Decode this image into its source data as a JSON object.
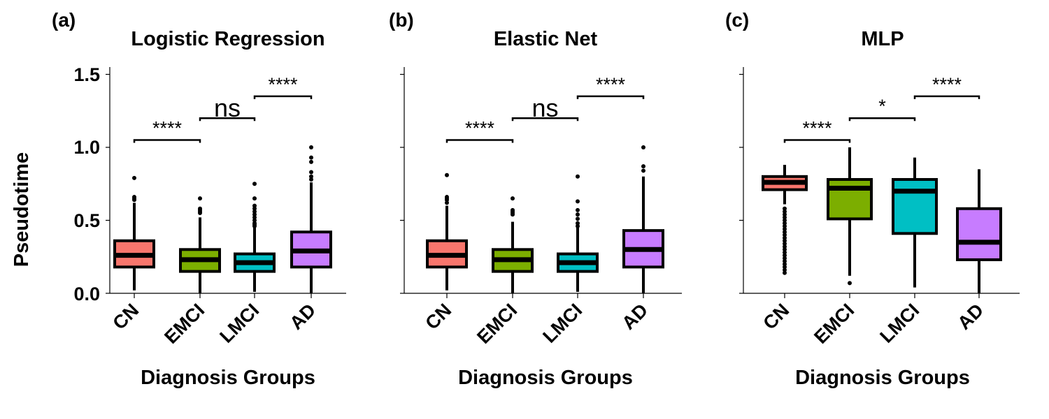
{
  "figure": {
    "ylabel": "Pseudotime",
    "xlabel": "Diagnosis Groups",
    "colors": {
      "CN": "#F8766D",
      "EMCI": "#7CAE00",
      "LMCI": "#00BFC4",
      "AD": "#C77CFF"
    }
  },
  "chart_data": [
    {
      "type": "box",
      "panel_label": "(a)",
      "title": "Logistic Regression",
      "categories": [
        "CN",
        "EMCI",
        "LMCI",
        "AD"
      ],
      "xlabel": "Diagnosis Groups",
      "ylabel": "Pseudotime",
      "ylim": [
        0,
        1.55
      ],
      "yticks": [
        "0.0",
        "0.5",
        "1.0",
        "1.5"
      ],
      "boxes": [
        {
          "group": "CN",
          "whisker_low": 0.02,
          "q1": 0.18,
          "median": 0.26,
          "q3": 0.36,
          "whisker_high": 0.62,
          "outliers": [
            0.64,
            0.65,
            0.66,
            0.79
          ]
        },
        {
          "group": "EMCI",
          "whisker_low": 0.0,
          "q1": 0.15,
          "median": 0.23,
          "q3": 0.3,
          "whisker_high": 0.52,
          "outliers": [
            0.55,
            0.56,
            0.57,
            0.58,
            0.65
          ]
        },
        {
          "group": "LMCI",
          "whisker_low": 0.01,
          "q1": 0.15,
          "median": 0.21,
          "q3": 0.27,
          "whisker_high": 0.45,
          "outliers": [
            0.46,
            0.47,
            0.48,
            0.5,
            0.52,
            0.54,
            0.56,
            0.58,
            0.6,
            0.65,
            0.75
          ]
        },
        {
          "group": "AD",
          "whisker_low": 0.0,
          "q1": 0.18,
          "median": 0.29,
          "q3": 0.42,
          "whisker_high": 0.76,
          "outliers": [
            0.78,
            0.8,
            0.83,
            0.9,
            0.93,
            1.0
          ]
        }
      ],
      "significance": [
        {
          "from": "CN",
          "to": "EMCI",
          "y": 1.05,
          "label": "****"
        },
        {
          "from": "EMCI",
          "to": "LMCI",
          "y": 1.2,
          "label": "ns"
        },
        {
          "from": "LMCI",
          "to": "AD",
          "y": 1.35,
          "label": "****"
        }
      ]
    },
    {
      "type": "box",
      "panel_label": "(b)",
      "title": "Elastic Net",
      "categories": [
        "CN",
        "EMCI",
        "LMCI",
        "AD"
      ],
      "xlabel": "Diagnosis Groups",
      "ylim": [
        0,
        1.55
      ],
      "boxes": [
        {
          "group": "CN",
          "whisker_low": 0.02,
          "q1": 0.18,
          "median": 0.26,
          "q3": 0.36,
          "whisker_high": 0.6,
          "outliers": [
            0.62,
            0.64,
            0.65,
            0.66,
            0.81
          ]
        },
        {
          "group": "EMCI",
          "whisker_low": 0.0,
          "q1": 0.15,
          "median": 0.23,
          "q3": 0.3,
          "whisker_high": 0.49,
          "outliers": [
            0.54,
            0.55,
            0.56,
            0.57,
            0.65
          ]
        },
        {
          "group": "LMCI",
          "whisker_low": 0.01,
          "q1": 0.15,
          "median": 0.21,
          "q3": 0.27,
          "whisker_high": 0.45,
          "outliers": [
            0.46,
            0.48,
            0.51,
            0.54,
            0.57,
            0.63,
            0.8
          ]
        },
        {
          "group": "AD",
          "whisker_low": 0.0,
          "q1": 0.18,
          "median": 0.3,
          "q3": 0.43,
          "whisker_high": 0.8,
          "outliers": [
            0.84,
            0.87,
            1.0
          ]
        }
      ],
      "significance": [
        {
          "from": "CN",
          "to": "EMCI",
          "y": 1.05,
          "label": "****"
        },
        {
          "from": "EMCI",
          "to": "LMCI",
          "y": 1.2,
          "label": "ns"
        },
        {
          "from": "LMCI",
          "to": "AD",
          "y": 1.35,
          "label": "****"
        }
      ]
    },
    {
      "type": "box",
      "panel_label": "(c)",
      "title": "MLP",
      "categories": [
        "CN",
        "EMCI",
        "LMCI",
        "AD"
      ],
      "xlabel": "Diagnosis Groups",
      "ylim": [
        0,
        1.55
      ],
      "boxes": [
        {
          "group": "CN",
          "whisker_low": 0.61,
          "q1": 0.71,
          "median": 0.76,
          "q3": 0.8,
          "whisker_high": 0.88,
          "outliers": [
            0.14,
            0.16,
            0.18,
            0.2,
            0.22,
            0.24,
            0.26,
            0.28,
            0.3,
            0.32,
            0.34,
            0.36,
            0.38,
            0.4,
            0.42,
            0.44,
            0.46,
            0.48,
            0.5,
            0.52,
            0.54,
            0.56,
            0.58
          ]
        },
        {
          "group": "EMCI",
          "whisker_low": 0.12,
          "q1": 0.51,
          "median": 0.72,
          "q3": 0.78,
          "whisker_high": 1.0,
          "outliers": [
            0.07
          ]
        },
        {
          "group": "LMCI",
          "whisker_low": 0.04,
          "q1": 0.41,
          "median": 0.7,
          "q3": 0.78,
          "whisker_high": 0.93,
          "outliers": []
        },
        {
          "group": "AD",
          "whisker_low": 0.0,
          "q1": 0.23,
          "median": 0.35,
          "q3": 0.58,
          "whisker_high": 0.85,
          "outliers": []
        }
      ],
      "significance": [
        {
          "from": "CN",
          "to": "EMCI",
          "y": 1.05,
          "label": "****"
        },
        {
          "from": "EMCI",
          "to": "LMCI",
          "y": 1.2,
          "label": "*"
        },
        {
          "from": "LMCI",
          "to": "AD",
          "y": 1.35,
          "label": "****"
        }
      ]
    }
  ]
}
